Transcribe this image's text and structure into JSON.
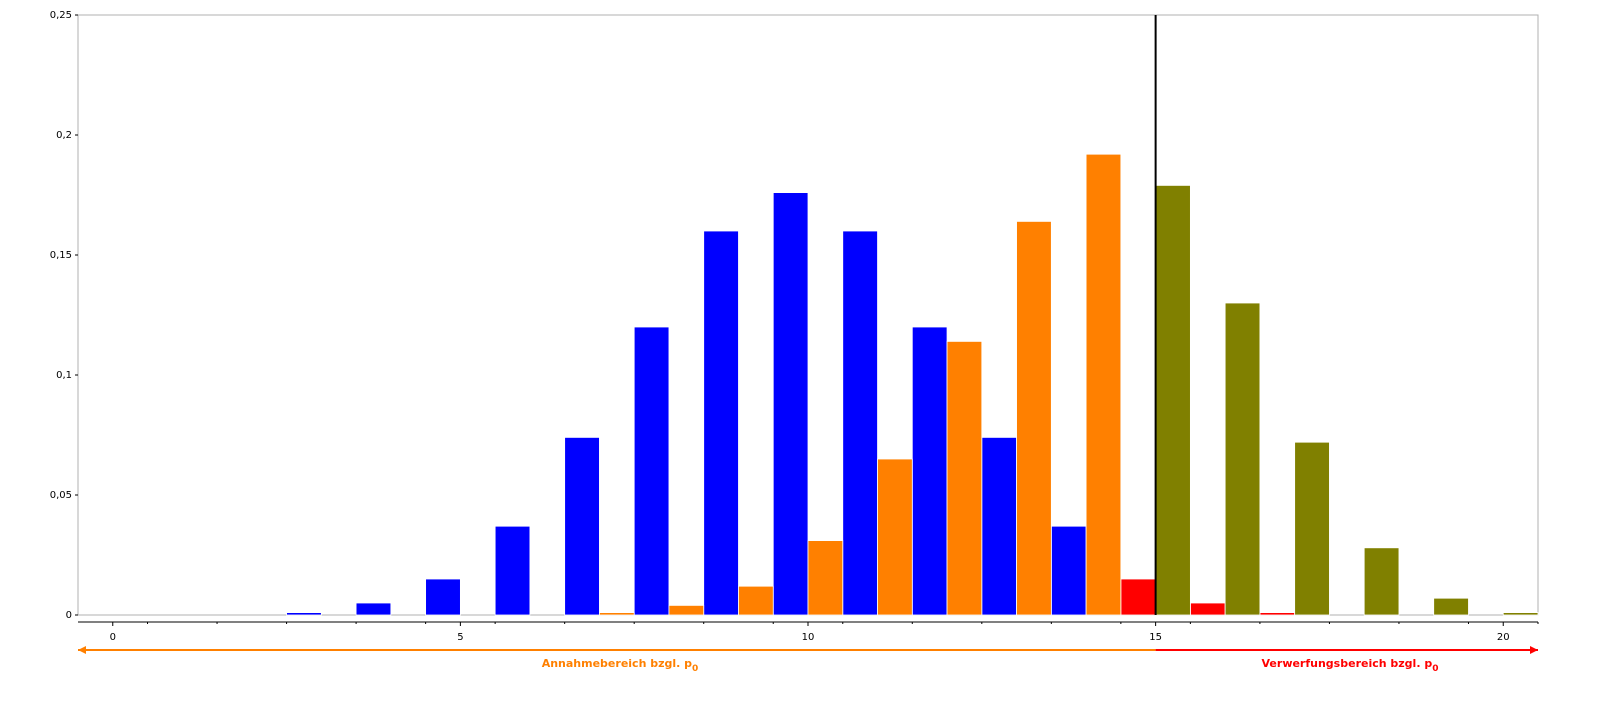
{
  "chart_data": {
    "type": "bar",
    "x": [
      0,
      1,
      2,
      3,
      4,
      5,
      6,
      7,
      8,
      9,
      10,
      11,
      12,
      13,
      14,
      15,
      16,
      17,
      18,
      19,
      20
    ],
    "series": [
      {
        "color": "#0000ff",
        "rejection_color": "#ff0000",
        "offset": "left",
        "values": [
          0,
          0,
          0,
          0.001,
          0.005,
          0.015,
          0.037,
          0.074,
          0.12,
          0.16,
          0.176,
          0.16,
          0.12,
          0.074,
          0.037,
          0.015,
          0.005,
          0.001,
          0,
          0,
          0
        ]
      },
      {
        "color": "#ff8000",
        "rejection_color": "#808000",
        "offset": "right",
        "values": [
          0,
          0,
          0,
          0,
          0,
          0,
          0,
          0.001,
          0.004,
          0.012,
          0.031,
          0.065,
          0.114,
          0.164,
          0.192,
          0.179,
          0.13,
          0.072,
          0.028,
          0.007,
          0.001
        ]
      }
    ],
    "critical_value": 15,
    "xlim": [
      -0.5,
      20.5
    ],
    "xticks": [
      0,
      5,
      10,
      15,
      20
    ],
    "ylim": [
      0,
      0.25
    ],
    "yticks": [
      0,
      {
        "value": 0.05,
        "label": "0,05"
      },
      {
        "value": 0.1,
        "label": "0,1"
      },
      {
        "value": 0.15,
        "label": "0,15"
      },
      {
        "value": 0.2,
        "label": "0,2"
      },
      {
        "value": 0.25,
        "label": "0,25"
      }
    ],
    "regions": [
      {
        "text": "Annahmebereich bzgl. p",
        "subscript": "0",
        "color": "#ff8000"
      },
      {
        "text": "Verwerfungsbereich bzgl. p",
        "subscript": "0",
        "color": "#ff0000"
      }
    ]
  }
}
